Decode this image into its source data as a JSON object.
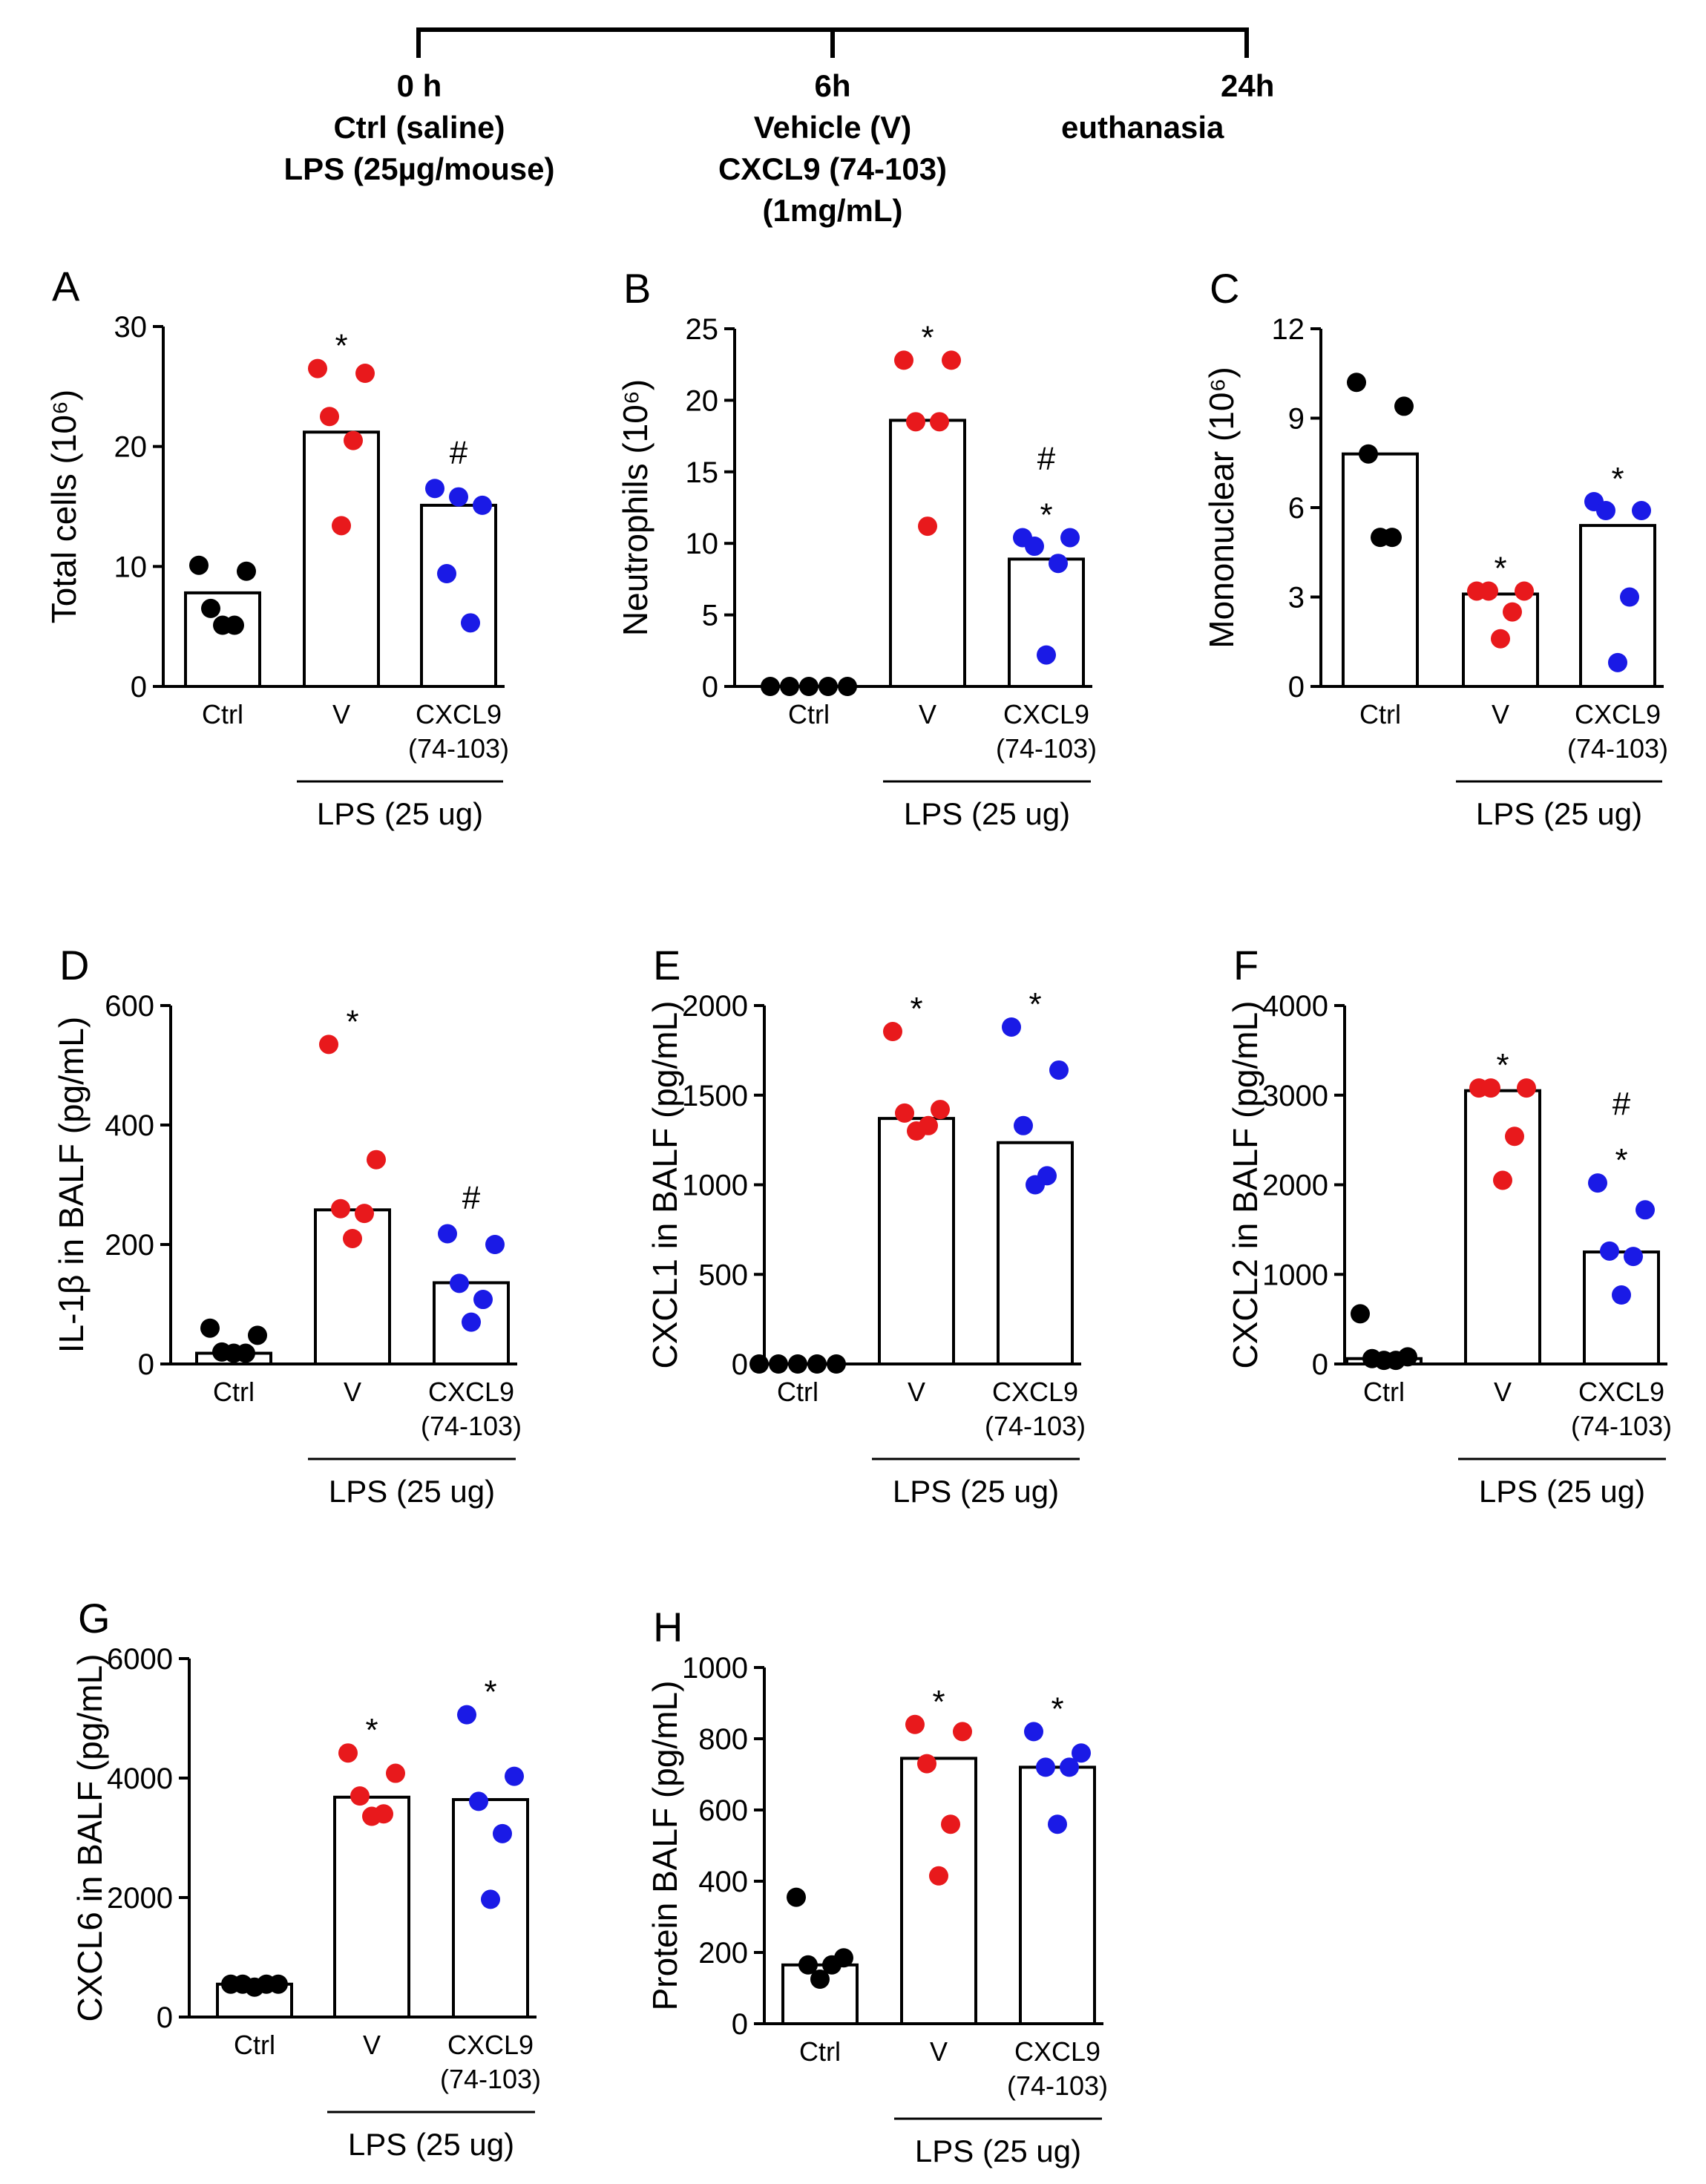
{
  "timeline": {
    "t0": {
      "time": "0 h",
      "lines": [
        "Ctrl (saline)",
        "LPS (25µg/mouse)"
      ]
    },
    "t6": {
      "time": "6h",
      "lines": [
        "Vehicle (V)",
        "CXCL9 (74-103)",
        "(1mg/mL)"
      ]
    },
    "t24": {
      "time": "24h",
      "lines": [
        "euthanasia"
      ]
    }
  },
  "colors": {
    "ctrl": "#000000",
    "v": "#e8191c",
    "cxcl9": "#1a1ae6"
  },
  "groups": [
    "Ctrl",
    "V",
    "CXCL9\n(74-103)"
  ],
  "group_label": "LPS (25 ug)",
  "chart_data": [
    {
      "letter": "A",
      "type": "scatter",
      "ylabel": "Total cells (10⁶)",
      "ylim": [
        0,
        30
      ],
      "yticks": [
        0,
        10,
        20,
        30
      ],
      "means": [
        7.8,
        21.2,
        15.1
      ],
      "points": [
        [
          10.1,
          9.6,
          6.5,
          5.1,
          5.1
        ],
        [
          26.5,
          26.1,
          22.5,
          20.5,
          13.4
        ],
        [
          16.5,
          15.1,
          9.4,
          5.3,
          15.8
        ]
      ],
      "sig": [
        [],
        [
          "*"
        ],
        [
          "#"
        ]
      ]
    },
    {
      "letter": "B",
      "type": "scatter",
      "ylabel": "Neutrophils (10⁶)",
      "ylim": [
        0,
        25
      ],
      "yticks": [
        0,
        5,
        10,
        15,
        20,
        25
      ],
      "means": [
        0,
        18.6,
        8.9
      ],
      "points": [
        [
          0,
          0,
          0,
          0,
          0
        ],
        [
          22.8,
          22.8,
          18.5,
          18.5,
          11.2
        ],
        [
          10.4,
          10.4,
          9.8,
          8.6,
          2.2
        ]
      ],
      "sig": [
        [],
        [
          "*"
        ],
        [
          "#",
          "*"
        ]
      ]
    },
    {
      "letter": "C",
      "type": "scatter",
      "ylabel": "Mononuclear (10⁶)",
      "ylim": [
        0,
        12
      ],
      "yticks": [
        0,
        3,
        6,
        9,
        12
      ],
      "means": [
        7.8,
        3.1,
        5.4
      ],
      "points": [
        [
          10.2,
          9.4,
          7.8,
          5.0,
          5.0
        ],
        [
          3.2,
          3.2,
          3.2,
          2.5,
          1.6
        ],
        [
          6.2,
          5.9,
          5.9,
          3.0,
          0.8
        ]
      ],
      "sig": [
        [],
        [
          "*"
        ],
        [
          "*"
        ]
      ]
    },
    {
      "letter": "D",
      "type": "scatter",
      "ylabel": "IL-1β in BALF (pg/mL)",
      "ylim": [
        0,
        600
      ],
      "yticks": [
        0,
        200,
        400,
        600
      ],
      "means": [
        18,
        258,
        136
      ],
      "points": [
        [
          60,
          48,
          20,
          18,
          18
        ],
        [
          535,
          342,
          260,
          252,
          210
        ],
        [
          218,
          200,
          135,
          108,
          70
        ]
      ],
      "sig": [
        [],
        [
          "*"
        ],
        [
          "#"
        ]
      ]
    },
    {
      "letter": "E",
      "type": "scatter",
      "ylabel": "CXCL1 in BALF (pg/mL)",
      "ylim": [
        0,
        2000
      ],
      "yticks": [
        0,
        500,
        1000,
        1500,
        2000
      ],
      "means": [
        0,
        1370,
        1235
      ],
      "points": [
        [
          0,
          0,
          0,
          0,
          0
        ],
        [
          1855,
          1420,
          1400,
          1330,
          1300
        ],
        [
          1880,
          1640,
          1330,
          1050,
          1000
        ]
      ],
      "sig": [
        [],
        [
          "*"
        ],
        [
          "*"
        ]
      ]
    },
    {
      "letter": "F",
      "type": "scatter",
      "ylabel": "CXCL2 in BALF (pg/mL)",
      "ylim": [
        0,
        4000
      ],
      "yticks": [
        0,
        1000,
        2000,
        3000,
        4000
      ],
      "means": [
        60,
        3050,
        1250
      ],
      "points": [
        [
          560,
          80,
          60,
          40,
          40
        ],
        [
          3080,
          3080,
          3080,
          2540,
          2050
        ],
        [
          2020,
          1720,
          1260,
          1200,
          770
        ]
      ],
      "sig": [
        [],
        [
          "*"
        ],
        [
          "#",
          "*"
        ]
      ]
    },
    {
      "letter": "G",
      "type": "scatter",
      "ylabel": "CXCL6 in BALF (pg/mL)",
      "ylim": [
        0,
        6000
      ],
      "yticks": [
        0,
        2000,
        4000,
        6000
      ],
      "means": [
        550,
        3680,
        3640
      ],
      "points": [
        [
          550,
          550,
          550,
          550,
          500
        ],
        [
          4420,
          4080,
          3700,
          3400,
          3360
        ],
        [
          5060,
          4030,
          3610,
          3070,
          1970
        ]
      ],
      "sig": [
        [],
        [
          "*"
        ],
        [
          "*"
        ]
      ]
    },
    {
      "letter": "H",
      "type": "scatter",
      "ylabel": "Protein BALF (pg/mL)",
      "ylim": [
        0,
        1000
      ],
      "yticks": [
        0,
        200,
        400,
        600,
        800,
        1000
      ],
      "means": [
        165,
        745,
        720
      ],
      "points": [
        [
          355,
          185,
          165,
          165,
          125
        ],
        [
          840,
          820,
          730,
          560,
          415
        ],
        [
          820,
          760,
          720,
          720,
          560
        ]
      ],
      "sig": [
        [],
        [
          "*"
        ],
        [
          "*"
        ]
      ]
    }
  ]
}
